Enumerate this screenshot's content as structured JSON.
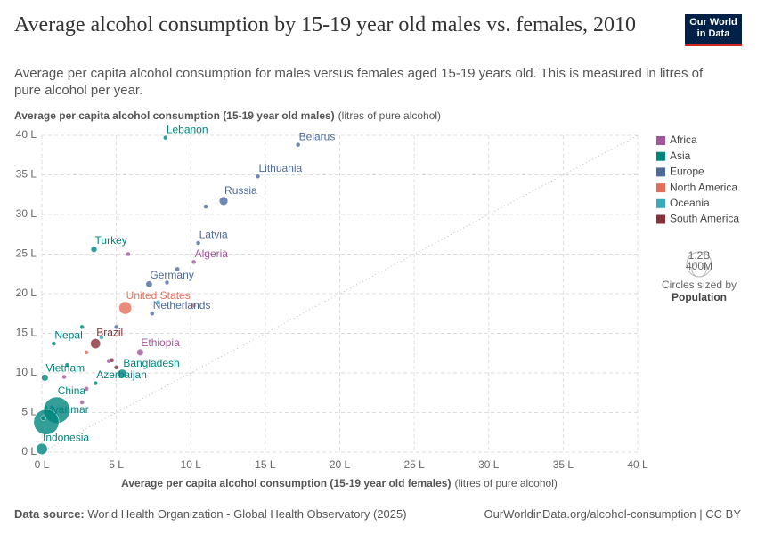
{
  "chart_data": {
    "type": "scatter",
    "title": "Average alcohol consumption by 15-19 year old males vs. females, 2010",
    "subtitle": "Average per capita alcohol consumption for males versus females aged 15-19 years old. This is measured in litres of pure alcohol per year.",
    "y_label": "Average per capita alcohol consumption (15-19 year old males)",
    "y_unit": "(litres of pure alcohol)",
    "x_label": "Average per capita alcohol consumption (15-19 year old females)",
    "x_unit": "(litres of pure alcohol)",
    "xlim": [
      0,
      40
    ],
    "ylim": [
      0,
      40
    ],
    "xticks": [
      {
        "value": 0,
        "label": "0 L"
      },
      {
        "value": 5,
        "label": "5 L"
      },
      {
        "value": 10,
        "label": "10 L"
      },
      {
        "value": 15,
        "label": "15 L"
      },
      {
        "value": 20,
        "label": "20 L"
      },
      {
        "value": 25,
        "label": "25 L"
      },
      {
        "value": 30,
        "label": "30 L"
      },
      {
        "value": 35,
        "label": "35 L"
      },
      {
        "value": 40,
        "label": "40 L"
      }
    ],
    "yticks": [
      {
        "value": 0,
        "label": "0 L"
      },
      {
        "value": 5,
        "label": "5 L"
      },
      {
        "value": 10,
        "label": "10 L"
      },
      {
        "value": 15,
        "label": "15 L"
      },
      {
        "value": 20,
        "label": "20 L"
      },
      {
        "value": 25,
        "label": "25 L"
      },
      {
        "value": 30,
        "label": "30 L"
      },
      {
        "value": 35,
        "label": "35 L"
      },
      {
        "value": 40,
        "label": "40 L"
      }
    ],
    "grid": true,
    "legend_position": "right",
    "series": [
      {
        "name": "Africa",
        "color": "#a2559c",
        "labels": [
          "Algeria",
          "Ethiopia",
          null,
          null,
          null,
          null,
          null
        ],
        "x": [
          10.2,
          6.6,
          5.8,
          4.5,
          2.7,
          1.5,
          3.0
        ],
        "values": [
          24.0,
          12.6,
          25.0,
          11.5,
          6.3,
          9.5,
          8.0
        ],
        "sizes": [
          36000000,
          88000000,
          10000000,
          40000000,
          25000000,
          15000000,
          20000000
        ]
      },
      {
        "name": "Asia",
        "color": "#00847e",
        "labels": [
          "Lebanon",
          "Turkey",
          "Nepal",
          "Vietnam",
          "Azerbaijan",
          "Bangladesh",
          "China",
          "Myanmar",
          "Indonesia",
          null,
          null,
          null
        ],
        "x": [
          8.3,
          3.5,
          0.8,
          0.2,
          3.6,
          5.4,
          1.0,
          0.1,
          0.0,
          0.3,
          2.7,
          1.7
        ],
        "values": [
          39.7,
          25.6,
          13.7,
          9.4,
          8.7,
          9.9,
          5.3,
          4.3,
          0.4,
          3.8,
          15.8,
          11.0
        ],
        "sizes": [
          4900000,
          73000000,
          27000000,
          88000000,
          9000000,
          152000000,
          1340000000,
          50000000,
          242000000,
          1230000000,
          10000000,
          20000000
        ]
      },
      {
        "name": "Europe",
        "color": "#4c6a9c",
        "labels": [
          "Belarus",
          "Lithuania",
          "Russia",
          "Latvia",
          "Germany",
          "Netherlands",
          null,
          null,
          null,
          null
        ],
        "x": [
          17.2,
          14.5,
          12.2,
          10.5,
          7.2,
          7.4,
          11.0,
          9.1,
          8.4,
          5.0
        ],
        "values": [
          38.8,
          34.8,
          31.7,
          26.4,
          21.2,
          17.5,
          31.0,
          23.1,
          21.4,
          15.8
        ],
        "sizes": [
          9500000,
          3000000,
          143000000,
          2000000,
          81000000,
          17000000,
          4000000,
          5000000,
          10000000,
          8000000
        ]
      },
      {
        "name": "North America",
        "color": "#e56e5a",
        "labels": [
          "United States",
          null,
          null
        ],
        "x": [
          5.6,
          3.0,
          10.2
        ],
        "values": [
          18.2,
          12.6,
          18.5
        ],
        "sizes": [
          309000000,
          35000000,
          3000000
        ]
      },
      {
        "name": "Oceania",
        "color": "#38aaba",
        "labels": [
          null,
          null
        ],
        "x": [
          7.8,
          4.0
        ],
        "values": [
          18.9,
          14.5
        ],
        "sizes": [
          22000000,
          4000000
        ]
      },
      {
        "name": "South America",
        "color": "#883039",
        "labels": [
          "Brazil",
          null,
          null
        ],
        "x": [
          3.6,
          4.7,
          5.0
        ],
        "values": [
          13.7,
          11.6,
          10.7
        ],
        "sizes": [
          196000000,
          40000000,
          29000000
        ]
      }
    ],
    "size_legend_title": "Circles sized by",
    "size_legend_variable": "Population",
    "size_legend": [
      {
        "value": 1200000000,
        "label": "1.2B"
      },
      {
        "value": 400000000,
        "label": "400M"
      }
    ],
    "source_label": "Data source:",
    "source": "World Health Organization - Global Health Observatory (2025)",
    "url": "OurWorldinData.org/alcohol-consumption | CC BY",
    "logo": [
      "Our World",
      "in Data"
    ]
  }
}
